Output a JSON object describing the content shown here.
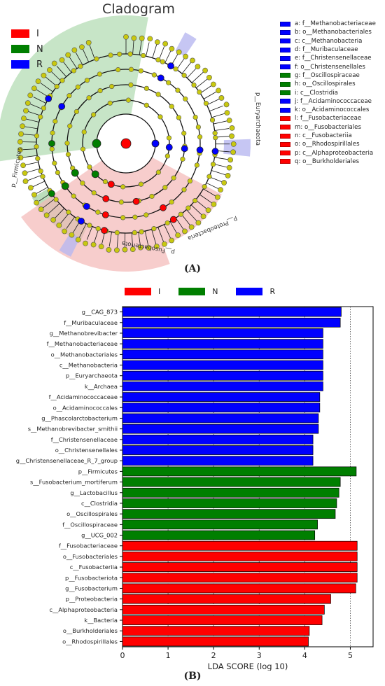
{
  "colors": {
    "I": "#ff0000",
    "N": "#007f00",
    "R": "#0000ff",
    "node": "#c8c810",
    "shade_I": "#f4b8b6",
    "shade_N": "#b9deb9",
    "shade_R": "#b8b8f0"
  },
  "panelA": {
    "title": "Cladogram",
    "label": "(A)",
    "legend": [
      {
        "group": "I",
        "label": "I"
      },
      {
        "group": "N",
        "label": "N"
      },
      {
        "group": "R",
        "label": "R"
      }
    ],
    "taxa_key": [
      {
        "group": "R",
        "label": "a: f__Methanobacteriaceae"
      },
      {
        "group": "R",
        "label": "b: o__Methanobacteriales"
      },
      {
        "group": "R",
        "label": "c: c__Methanobacteria"
      },
      {
        "group": "R",
        "label": "d: f__Muribaculaceae"
      },
      {
        "group": "R",
        "label": "e: f__Christensenellaceae"
      },
      {
        "group": "R",
        "label": "f: o__Christensenellales"
      },
      {
        "group": "N",
        "label": "g: f__Oscillospiraceae"
      },
      {
        "group": "N",
        "label": "h: o__Oscillospirales"
      },
      {
        "group": "N",
        "label": "i: c__Clostridia"
      },
      {
        "group": "R",
        "label": "j: f__Acidaminococcaceae"
      },
      {
        "group": "R",
        "label": "k: o__Acidaminococcales"
      },
      {
        "group": "I",
        "label": "l: f__Fusobacteriaceae"
      },
      {
        "group": "I",
        "label": "m: o__Fusobacteriales"
      },
      {
        "group": "I",
        "label": "n: c__Fusobacteriia"
      },
      {
        "group": "I",
        "label": "o: o__Rhodospirillales"
      },
      {
        "group": "I",
        "label": "p: c__Alphaproteobacteria"
      },
      {
        "group": "I",
        "label": "q: o__Burkholderiales"
      }
    ],
    "clade_labels": {
      "firmicutes": "p__Firmicutes",
      "euryarchaeota": "p__Euryarchaeota",
      "fusobacteriota": "p__Fusobacteriota",
      "proteobacteria": "p__Proteobacteria"
    }
  },
  "chart_data": {
    "type": "bar",
    "orientation": "horizontal",
    "label": "(B)",
    "xlabel": "LDA SCORE (log 10)",
    "ylabel": "",
    "xlim": [
      0,
      5.5
    ],
    "xticks": [
      0,
      1,
      2,
      3,
      4,
      5
    ],
    "grid": "vertical dotted",
    "legend": "top",
    "legend_entries": [
      {
        "group": "I",
        "label": "I"
      },
      {
        "group": "N",
        "label": "N"
      },
      {
        "group": "R",
        "label": "R"
      }
    ],
    "bars": [
      {
        "taxon": "g__CAG_873",
        "value": 4.8,
        "group": "R"
      },
      {
        "taxon": "f__Muribaculaceae",
        "value": 4.78,
        "group": "R"
      },
      {
        "taxon": "g__Methanobrevibacter",
        "value": 4.4,
        "group": "R"
      },
      {
        "taxon": "f__Methanobacteriaceae",
        "value": 4.4,
        "group": "R"
      },
      {
        "taxon": "o__Methanobacteriales",
        "value": 4.4,
        "group": "R"
      },
      {
        "taxon": "c__Methanobacteria",
        "value": 4.4,
        "group": "R"
      },
      {
        "taxon": "p__Euryarchaeota",
        "value": 4.4,
        "group": "R"
      },
      {
        "taxon": "k__Archaea",
        "value": 4.4,
        "group": "R"
      },
      {
        "taxon": "f__Acidaminococcaceae",
        "value": 4.33,
        "group": "R"
      },
      {
        "taxon": "o__Acidaminococcales",
        "value": 4.33,
        "group": "R"
      },
      {
        "taxon": "g__Phascolarctobacterium",
        "value": 4.3,
        "group": "R"
      },
      {
        "taxon": "s__Methanobrevibacter_smithii",
        "value": 4.3,
        "group": "R"
      },
      {
        "taxon": "f__Christensenellaceae",
        "value": 4.18,
        "group": "R"
      },
      {
        "taxon": "o__Christensenellales",
        "value": 4.18,
        "group": "R"
      },
      {
        "taxon": "g__Christensenellaceae_R_7_group",
        "value": 4.18,
        "group": "R"
      },
      {
        "taxon": "p__Firmicutes",
        "value": 5.13,
        "group": "N"
      },
      {
        "taxon": "s__Fusobacterium_mortiferum",
        "value": 4.78,
        "group": "N"
      },
      {
        "taxon": "g__Lactobacillus",
        "value": 4.75,
        "group": "N"
      },
      {
        "taxon": "c__Clostridia",
        "value": 4.7,
        "group": "N"
      },
      {
        "taxon": "o__Oscillospirales",
        "value": 4.67,
        "group": "N"
      },
      {
        "taxon": "f__Oscillospiraceae",
        "value": 4.28,
        "group": "N"
      },
      {
        "taxon": "g__UCG_002",
        "value": 4.22,
        "group": "N"
      },
      {
        "taxon": "f__Fusobacteriaceae",
        "value": 5.15,
        "group": "I"
      },
      {
        "taxon": "o__Fusobacteriales",
        "value": 5.15,
        "group": "I"
      },
      {
        "taxon": "c__Fusobacteriia",
        "value": 5.15,
        "group": "I"
      },
      {
        "taxon": "p__Fusobacteriota",
        "value": 5.15,
        "group": "I"
      },
      {
        "taxon": "g__Fusobacterium",
        "value": 5.12,
        "group": "I"
      },
      {
        "taxon": "p__Proteobacteria",
        "value": 4.57,
        "group": "I"
      },
      {
        "taxon": "c__Alphaproteobacteria",
        "value": 4.43,
        "group": "I"
      },
      {
        "taxon": "k__Bacteria",
        "value": 4.38,
        "group": "I"
      },
      {
        "taxon": "o__Burkholderiales",
        "value": 4.1,
        "group": "I"
      },
      {
        "taxon": "o__Rhodospirillales",
        "value": 4.08,
        "group": "I"
      }
    ]
  }
}
